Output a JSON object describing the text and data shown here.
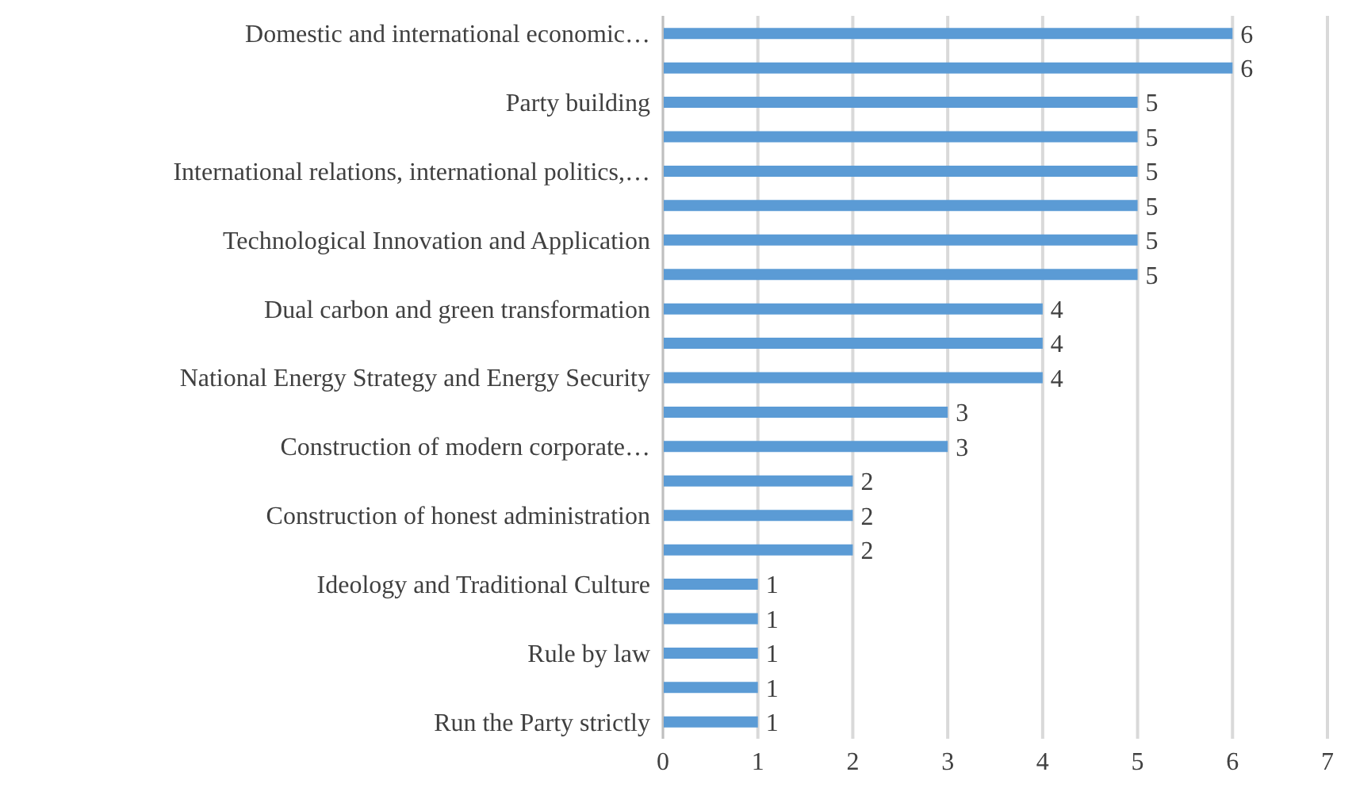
{
  "chart_data": {
    "type": "bar",
    "orientation": "horizontal",
    "categories": [
      "Domestic and international economic…",
      null,
      "Party building",
      null,
      "International relations, international politics,…",
      null,
      "Technological Innovation and Application",
      null,
      "Dual carbon and green transformation",
      null,
      "National Energy Strategy and Energy Security",
      null,
      "Construction of modern corporate…",
      null,
      "Construction of honest administration",
      null,
      "Ideology and Traditional Culture",
      null,
      "Rule by law",
      null,
      "Run the Party strictly"
    ],
    "values": [
      6,
      6,
      5,
      5,
      5,
      5,
      5,
      5,
      4,
      4,
      4,
      3,
      3,
      2,
      2,
      2,
      1,
      1,
      1,
      1,
      1
    ],
    "color": "#5b9bd5",
    "xlim": [
      0,
      7
    ],
    "xticks": [
      0,
      1,
      2,
      3,
      4,
      5,
      6,
      7
    ],
    "grid": "x",
    "data_labels": true,
    "legend": false
  }
}
